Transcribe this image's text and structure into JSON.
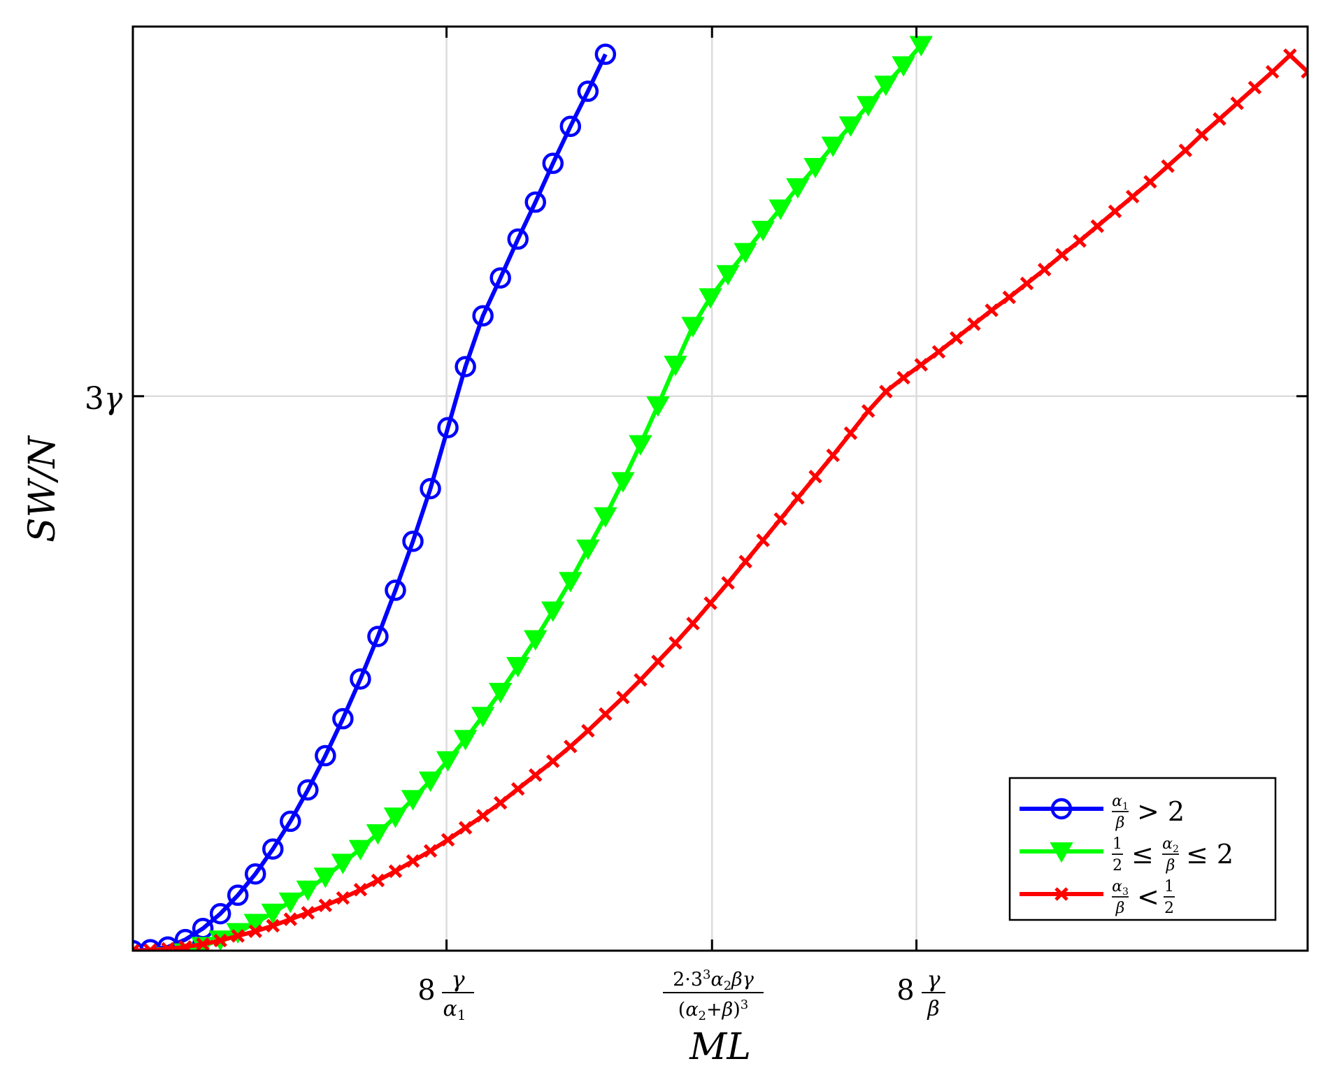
{
  "chart_data": {
    "type": "line",
    "xlabel": "ML",
    "ylabel": "SW/N",
    "xlim": [
      0,
      1
    ],
    "ylim": [
      0,
      1
    ],
    "grid": true,
    "legend_placement": "bottom-right",
    "x_ticks": [
      {
        "value": 0.267,
        "label": "8 γ/α₁"
      },
      {
        "value": 0.493,
        "label": "2·3³α₂βγ/(α₂+β)³"
      },
      {
        "value": 0.667,
        "label": "8 γ/β"
      }
    ],
    "y_ticks": [
      {
        "value": 0.6,
        "label": "3γ"
      }
    ],
    "series": [
      {
        "name": "α₁/β > 2",
        "color": "#0000ff",
        "marker": "circle",
        "x": [
          0,
          0.0149,
          0.0298,
          0.0447,
          0.0596,
          0.0745,
          0.0894,
          0.1043,
          0.1192,
          0.1341,
          0.149,
          0.1639,
          0.1788,
          0.1937,
          0.2086,
          0.2235,
          0.2384,
          0.2533,
          0.2682,
          0.2831,
          0.298,
          0.3129,
          0.3278,
          0.3427,
          0.3576,
          0.3725,
          0.3874,
          0.4023
        ],
        "y": [
          0,
          0.001,
          0.004,
          0.012,
          0.024,
          0.04,
          0.06,
          0.083,
          0.11,
          0.14,
          0.174,
          0.211,
          0.251,
          0.294,
          0.34,
          0.39,
          0.443,
          0.5,
          0.566,
          0.632,
          0.687,
          0.728,
          0.77,
          0.81,
          0.852,
          0.892,
          0.93,
          0.97
        ]
      },
      {
        "name": "1/2 ≤ α₂/β ≤ 2",
        "color": "#00ff00",
        "marker": "triangle-down",
        "x": [
          0,
          0.0149,
          0.0298,
          0.0447,
          0.0596,
          0.0745,
          0.0894,
          0.1043,
          0.1192,
          0.1341,
          0.149,
          0.1639,
          0.1788,
          0.1937,
          0.2086,
          0.2235,
          0.2384,
          0.2533,
          0.2682,
          0.2831,
          0.298,
          0.3129,
          0.3278,
          0.3427,
          0.3576,
          0.3725,
          0.3874,
          0.4023,
          0.4172,
          0.4321,
          0.447,
          0.4619,
          0.4768,
          0.4917,
          0.5066,
          0.5215,
          0.5364,
          0.5513,
          0.566,
          0.581,
          0.596,
          0.611,
          0.626,
          0.641,
          0.656,
          0.671
        ],
        "y": [
          -0.01,
          -0.008,
          -0.006,
          -0.002,
          0.005,
          0.012,
          0.02,
          0.03,
          0.041,
          0.053,
          0.066,
          0.08,
          0.095,
          0.11,
          0.127,
          0.145,
          0.164,
          0.184,
          0.206,
          0.229,
          0.254,
          0.28,
          0.308,
          0.337,
          0.368,
          0.4,
          0.435,
          0.47,
          0.508,
          0.548,
          0.59,
          0.634,
          0.676,
          0.707,
          0.732,
          0.756,
          0.78,
          0.803,
          0.826,
          0.848,
          0.871,
          0.893,
          0.915,
          0.937,
          0.958,
          0.98
        ]
      },
      {
        "name": "α₃/β < 1/2",
        "color": "#ff0000",
        "marker": "x",
        "x": [
          0,
          0.0149,
          0.0298,
          0.0447,
          0.0596,
          0.0745,
          0.0894,
          0.1043,
          0.1192,
          0.1341,
          0.149,
          0.1639,
          0.1788,
          0.1937,
          0.2086,
          0.2235,
          0.2384,
          0.2533,
          0.2682,
          0.2831,
          0.298,
          0.3129,
          0.3278,
          0.3427,
          0.3576,
          0.3725,
          0.3874,
          0.4023,
          0.4172,
          0.4321,
          0.447,
          0.4619,
          0.4768,
          0.4917,
          0.5066,
          0.5215,
          0.5364,
          0.5513,
          0.566,
          0.581,
          0.596,
          0.611,
          0.626,
          0.641,
          0.656,
          0.671,
          0.686,
          0.701,
          0.716,
          0.731,
          0.746,
          0.761,
          0.776,
          0.791,
          0.806,
          0.821,
          0.836,
          0.851,
          0.866,
          0.881,
          0.896,
          0.91,
          0.925,
          0.94,
          0.955,
          0.97,
          0.985,
          1
        ],
        "y": [
          0,
          0.0005,
          0.002,
          0.004,
          0.007,
          0.011,
          0.016,
          0.021,
          0.027,
          0.034,
          0.041,
          0.049,
          0.057,
          0.066,
          0.076,
          0.086,
          0.097,
          0.108,
          0.12,
          0.133,
          0.146,
          0.16,
          0.175,
          0.19,
          0.205,
          0.221,
          0.238,
          0.256,
          0.274,
          0.293,
          0.313,
          0.333,
          0.354,
          0.376,
          0.398,
          0.421,
          0.444,
          0.467,
          0.49,
          0.513,
          0.536,
          0.56,
          0.584,
          0.605,
          0.62,
          0.634,
          0.648,
          0.663,
          0.678,
          0.693,
          0.707,
          0.722,
          0.737,
          0.753,
          0.768,
          0.784,
          0.8,
          0.816,
          0.832,
          0.849,
          0.866,
          0.883,
          0.9,
          0.917,
          0.934,
          0.951,
          0.969,
          0.951
        ]
      }
    ]
  }
}
